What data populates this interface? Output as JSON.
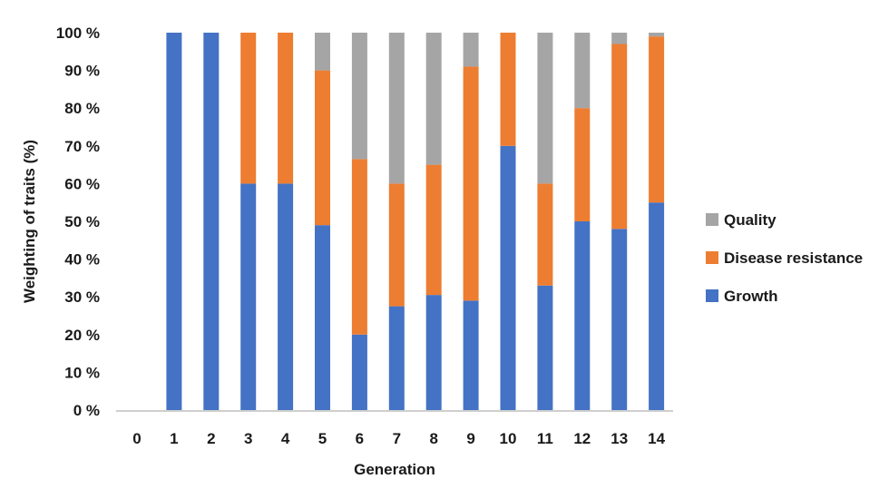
{
  "chart_data": {
    "type": "bar",
    "stacked": true,
    "title": "",
    "xlabel": "Generation",
    "ylabel": "Weighting of traits (%)",
    "ylim": [
      0,
      100
    ],
    "y_ticks": [
      0,
      10,
      20,
      30,
      40,
      50,
      60,
      70,
      80,
      90,
      100
    ],
    "y_tick_labels": [
      "0 %",
      "10 %",
      "20 %",
      "30 %",
      "40 %",
      "50 %",
      "60 %",
      "70 %",
      "80 %",
      "90 %",
      "100 %"
    ],
    "categories": [
      "0",
      "1",
      "2",
      "3",
      "4",
      "5",
      "6",
      "7",
      "8",
      "9",
      "10",
      "11",
      "12",
      "13",
      "14"
    ],
    "grid": false,
    "legend_position": "right",
    "series": [
      {
        "name": "Growth",
        "color": "#4472c4",
        "values": [
          0,
          100,
          100,
          60,
          60,
          49,
          20,
          27.5,
          30.5,
          29,
          70,
          33,
          50,
          48,
          55
        ]
      },
      {
        "name": "Disease resistance",
        "color": "#ed7d31",
        "values": [
          0,
          0,
          0,
          40,
          40,
          41,
          46.5,
          32.5,
          34.5,
          62,
          30,
          27,
          30,
          49,
          44
        ]
      },
      {
        "name": "Quality",
        "color": "#a5a5a5",
        "values": [
          0,
          0,
          0,
          0,
          0,
          10,
          33.5,
          40,
          35,
          9,
          0,
          40,
          20,
          3,
          1
        ]
      }
    ],
    "legend_order": [
      "Quality",
      "Disease resistance",
      "Growth"
    ]
  }
}
